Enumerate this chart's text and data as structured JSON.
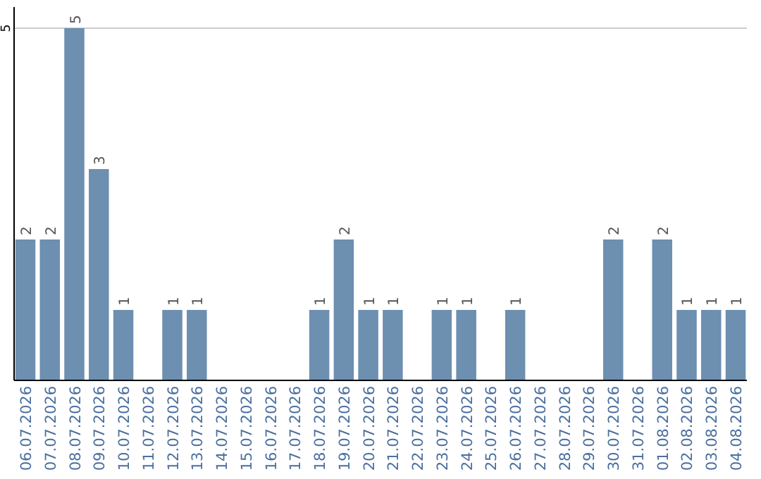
{
  "chart_data": {
    "type": "bar",
    "categories": [
      "06.07.2026",
      "07.07.2026",
      "08.07.2026",
      "09.07.2026",
      "10.07.2026",
      "11.07.2026",
      "12.07.2026",
      "13.07.2026",
      "14.07.2026",
      "15.07.2026",
      "16.07.2026",
      "17.07.2026",
      "18.07.2026",
      "19.07.2026",
      "20.07.2026",
      "21.07.2026",
      "22.07.2026",
      "23.07.2026",
      "24.07.2026",
      "25.07.2026",
      "26.07.2026",
      "27.07.2026",
      "28.07.2026",
      "29.07.2026",
      "30.07.2026",
      "31.07.2026",
      "01.08.2026",
      "02.08.2026",
      "03.08.2026",
      "04.08.2026"
    ],
    "values": [
      2,
      2,
      5,
      3,
      1,
      null,
      1,
      1,
      null,
      null,
      null,
      null,
      1,
      2,
      1,
      1,
      null,
      1,
      1,
      null,
      1,
      null,
      null,
      null,
      2,
      null,
      2,
      1,
      1,
      1
    ],
    "color": "#6d8fb0",
    "ylim": [
      0,
      5.3
    ],
    "yticks": [
      5
    ],
    "grid": "y",
    "data_labels": true
  }
}
